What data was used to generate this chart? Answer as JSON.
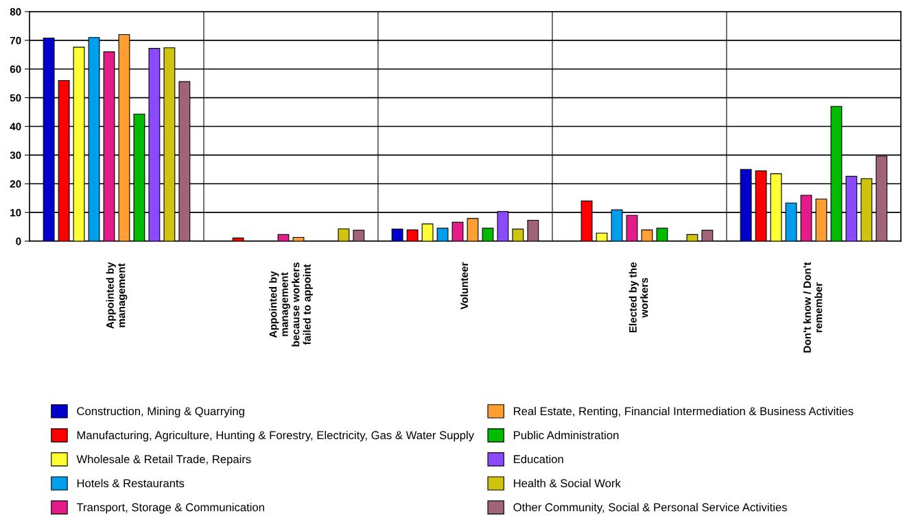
{
  "chart_data": {
    "type": "bar",
    "categories": [
      "Appointed by\nmanagement",
      "Appointed by\nmanagement\nbecause workers\nfailed to appoint",
      "Volunteer",
      "Elected by the\nworkers",
      "Don't know / Don't\nremember"
    ],
    "series": [
      {
        "name": "Construction, Mining & Quarrying",
        "color": "#0000cc",
        "values": [
          70.8,
          null,
          4.2,
          null,
          25.0
        ]
      },
      {
        "name": "Manufacturing, Agriculture, Hunting & Forestry, Electricity, Gas & Water Supply",
        "color": "#ff0000",
        "values": [
          56.0,
          1.1,
          3.9,
          14.0,
          24.5
        ]
      },
      {
        "name": "Wholesale & Retail Trade, Repairs",
        "color": "#ffff33",
        "values": [
          67.6,
          null,
          6.0,
          2.8,
          23.5
        ]
      },
      {
        "name": "Hotels & Restaurants",
        "color": "#009fee",
        "values": [
          71.0,
          null,
          4.5,
          10.9,
          13.3
        ]
      },
      {
        "name": "Transport, Storage & Communication",
        "color": "#e31c89",
        "values": [
          66.0,
          2.3,
          6.6,
          9.0,
          16.0
        ]
      },
      {
        "name": "Real Estate, Renting, Financial Intermediation & Business Activities",
        "color": "#ff9f33",
        "values": [
          72.0,
          1.3,
          7.9,
          3.9,
          14.7
        ]
      },
      {
        "name": "Public Administration",
        "color": "#00bb00",
        "values": [
          44.3,
          null,
          4.5,
          4.5,
          47.0
        ]
      },
      {
        "name": "Education",
        "color": "#8c4aff",
        "values": [
          67.2,
          null,
          10.3,
          null,
          22.6
        ]
      },
      {
        "name": "Health & Social Work",
        "color": "#d0c30e",
        "values": [
          67.4,
          4.3,
          4.2,
          2.3,
          21.8
        ]
      },
      {
        "name": "Other Community, Social & Personal Service Activities",
        "color": "#a16378",
        "values": [
          55.6,
          3.8,
          7.3,
          3.8,
          29.6
        ]
      }
    ],
    "ylim": [
      0,
      80
    ],
    "yticks": [
      0,
      10,
      20,
      30,
      40,
      50,
      60,
      70,
      80
    ],
    "grid": "y",
    "legend": "bottom"
  }
}
